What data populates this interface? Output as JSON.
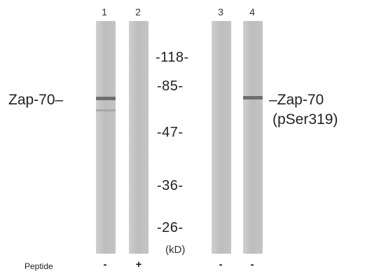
{
  "lane_numbers": [
    "1",
    "2",
    "3",
    "4"
  ],
  "left_label": "Zap-70–",
  "right_label_line1": "–Zap-70",
  "right_label_line2": "(pSer319)",
  "mw_markers": [
    "-118-",
    "-85-",
    "-47-",
    "-36-",
    "-26-"
  ],
  "unit": "(kD)",
  "peptide": {
    "label": "Peptide",
    "signs": [
      "-",
      "+",
      "-",
      "-"
    ]
  },
  "colors": {
    "lane": "#c4c4c4",
    "band": "#6e6e6e",
    "text": "#222222"
  }
}
